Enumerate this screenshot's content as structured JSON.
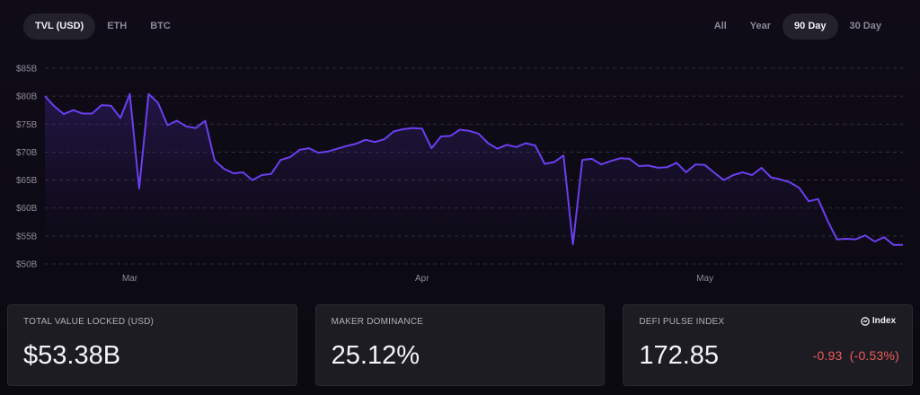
{
  "tabs_left": [
    {
      "label": "TVL (USD)",
      "active": true
    },
    {
      "label": "ETH",
      "active": false
    },
    {
      "label": "BTC",
      "active": false
    }
  ],
  "tabs_right": [
    {
      "label": "All",
      "active": false
    },
    {
      "label": "Year",
      "active": false
    },
    {
      "label": "90 Day",
      "active": true
    },
    {
      "label": "30 Day",
      "active": false
    }
  ],
  "chart_data": {
    "type": "area",
    "title": "",
    "xlabel": "",
    "ylabel": "",
    "ylim": [
      50,
      85
    ],
    "y_ticks": [
      50,
      55,
      60,
      65,
      70,
      75,
      80,
      85
    ],
    "y_tick_labels": [
      "$50B",
      "$55B",
      "$60B",
      "$65B",
      "$70B",
      "$75B",
      "$80B",
      "$85B"
    ],
    "x_tick_labels": [
      {
        "label": "Mar",
        "x": 9
      },
      {
        "label": "Apr",
        "x": 40
      },
      {
        "label": "May",
        "x": 70
      }
    ],
    "grid": true,
    "line_color": "#6b3ff0",
    "series": [
      {
        "values": [
          80.0,
          78.2,
          76.8,
          77.5,
          76.9,
          76.9,
          78.4,
          78.3,
          76.1,
          80.4,
          63.5,
          80.4,
          78.8,
          74.8,
          75.6,
          74.6,
          74.3,
          75.6,
          68.5,
          67.0,
          66.2,
          66.4,
          65.0,
          65.9,
          66.1,
          68.6,
          69.1,
          70.4,
          70.7,
          69.9,
          70.1,
          70.6,
          71.1,
          71.5,
          72.2,
          71.8,
          72.3,
          73.7,
          74.1,
          74.3,
          74.2,
          70.7,
          72.8,
          72.9,
          74.0,
          73.8,
          73.3,
          71.6,
          70.6,
          71.3,
          70.9,
          71.6,
          71.2,
          67.9,
          68.2,
          69.4,
          53.5,
          68.6,
          68.8,
          67.8,
          68.4,
          68.9,
          68.8,
          67.5,
          67.6,
          67.2,
          67.3,
          68.1,
          66.4,
          67.8,
          67.7,
          66.3,
          65.0,
          65.9,
          66.4,
          65.9,
          67.2,
          65.5,
          65.1,
          64.6,
          63.6,
          61.2,
          61.6,
          57.8,
          54.4,
          54.5,
          54.4,
          55.1,
          54.0,
          54.8,
          53.4,
          53.4
        ]
      }
    ]
  },
  "cards": [
    {
      "label": "TOTAL VALUE LOCKED (USD)",
      "value": "$53.38B"
    },
    {
      "label": "MAKER DOMINANCE",
      "value": "25.12%"
    },
    {
      "label": "DEFI PULSE INDEX",
      "value": "172.85",
      "badge": "Index",
      "change": "-0.93",
      "change_pct": "(-0.53%)",
      "change_color": "#ef5b5b"
    }
  ]
}
